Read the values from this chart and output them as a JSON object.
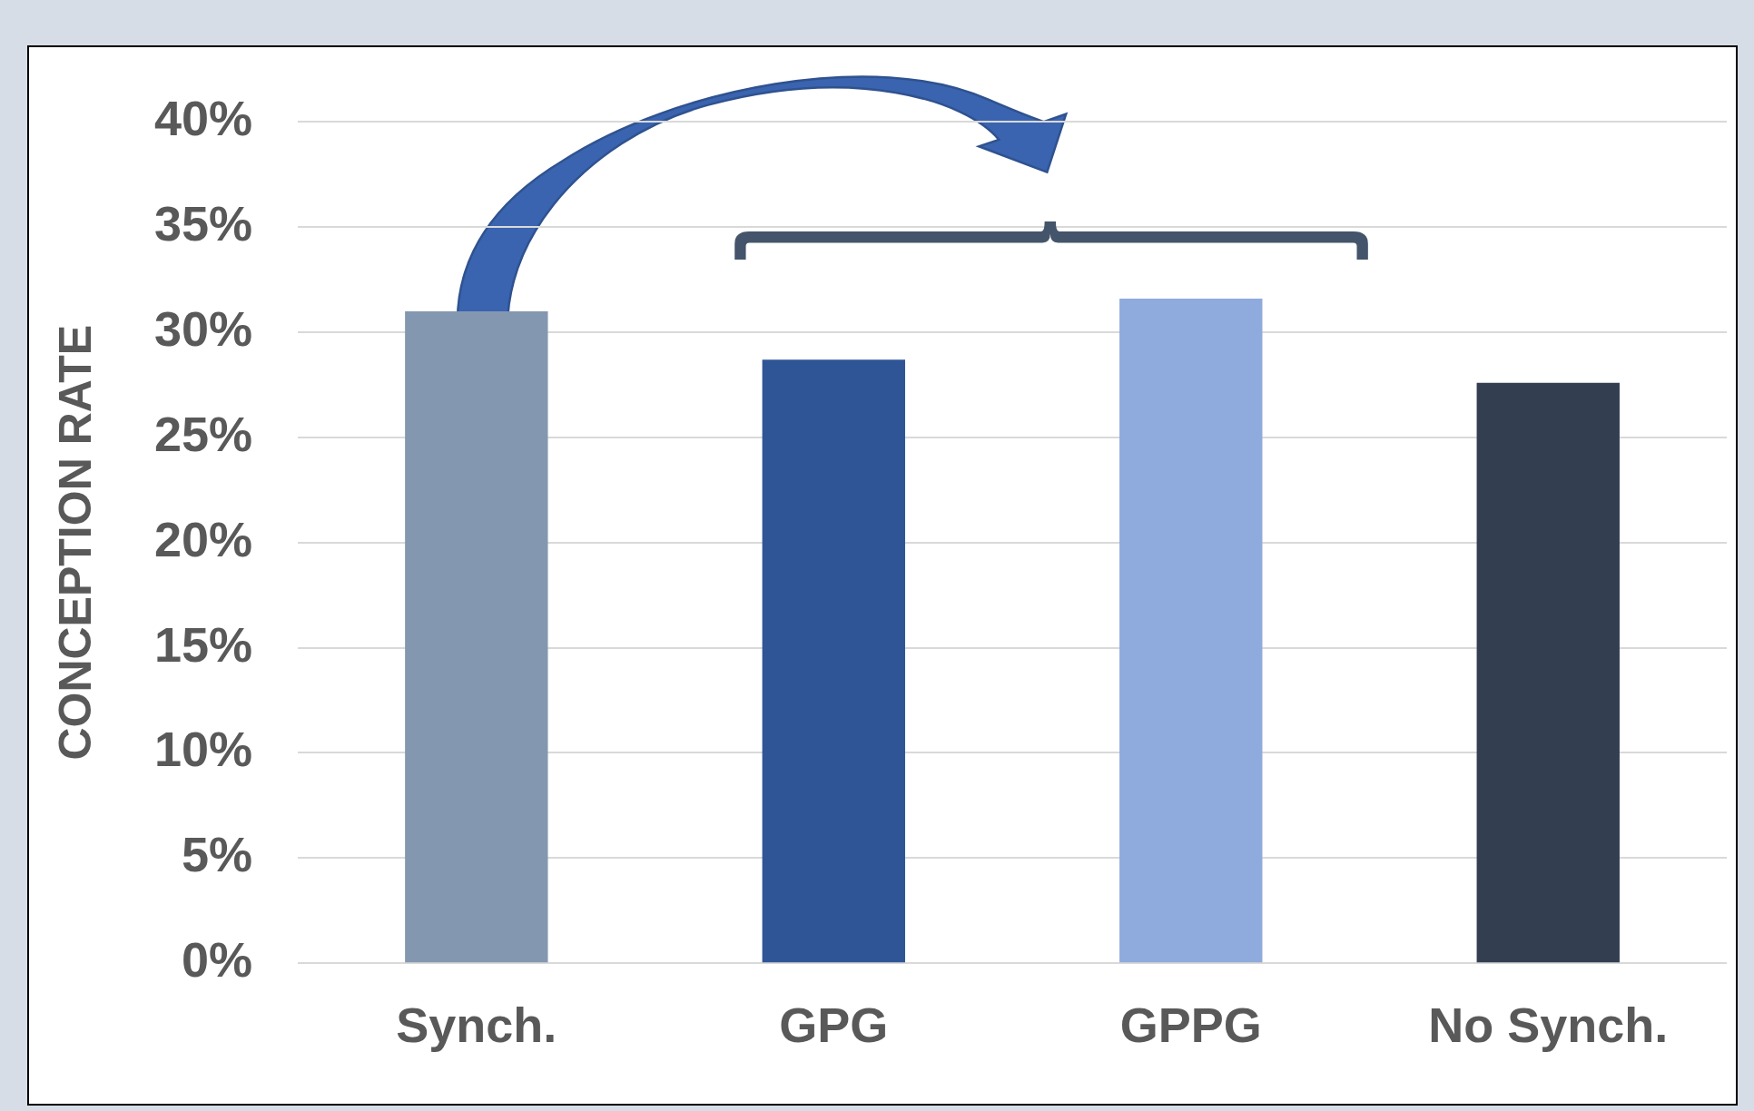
{
  "chart_data": {
    "type": "bar",
    "ylabel": "CONCEPTION RATE",
    "categories": [
      "Synch.",
      "GPG",
      "GPPG",
      "No Synch."
    ],
    "values": [
      31,
      28.7,
      31.6,
      27.6
    ],
    "colors": [
      "#8497b0",
      "#2f5597",
      "#8faadc",
      "#333f50"
    ],
    "ylim": [
      0,
      40
    ],
    "yticks": [
      {
        "value": 0,
        "label": "0%"
      },
      {
        "value": 5,
        "label": "5%"
      },
      {
        "value": 10,
        "label": "10%"
      },
      {
        "value": 15,
        "label": "15%"
      },
      {
        "value": 20,
        "label": "20%"
      },
      {
        "value": 25,
        "label": "25%"
      },
      {
        "value": 30,
        "label": "30%"
      },
      {
        "value": 35,
        "label": "35%"
      },
      {
        "value": 40,
        "label": "40%"
      }
    ],
    "grid": "y",
    "legend": false
  }
}
